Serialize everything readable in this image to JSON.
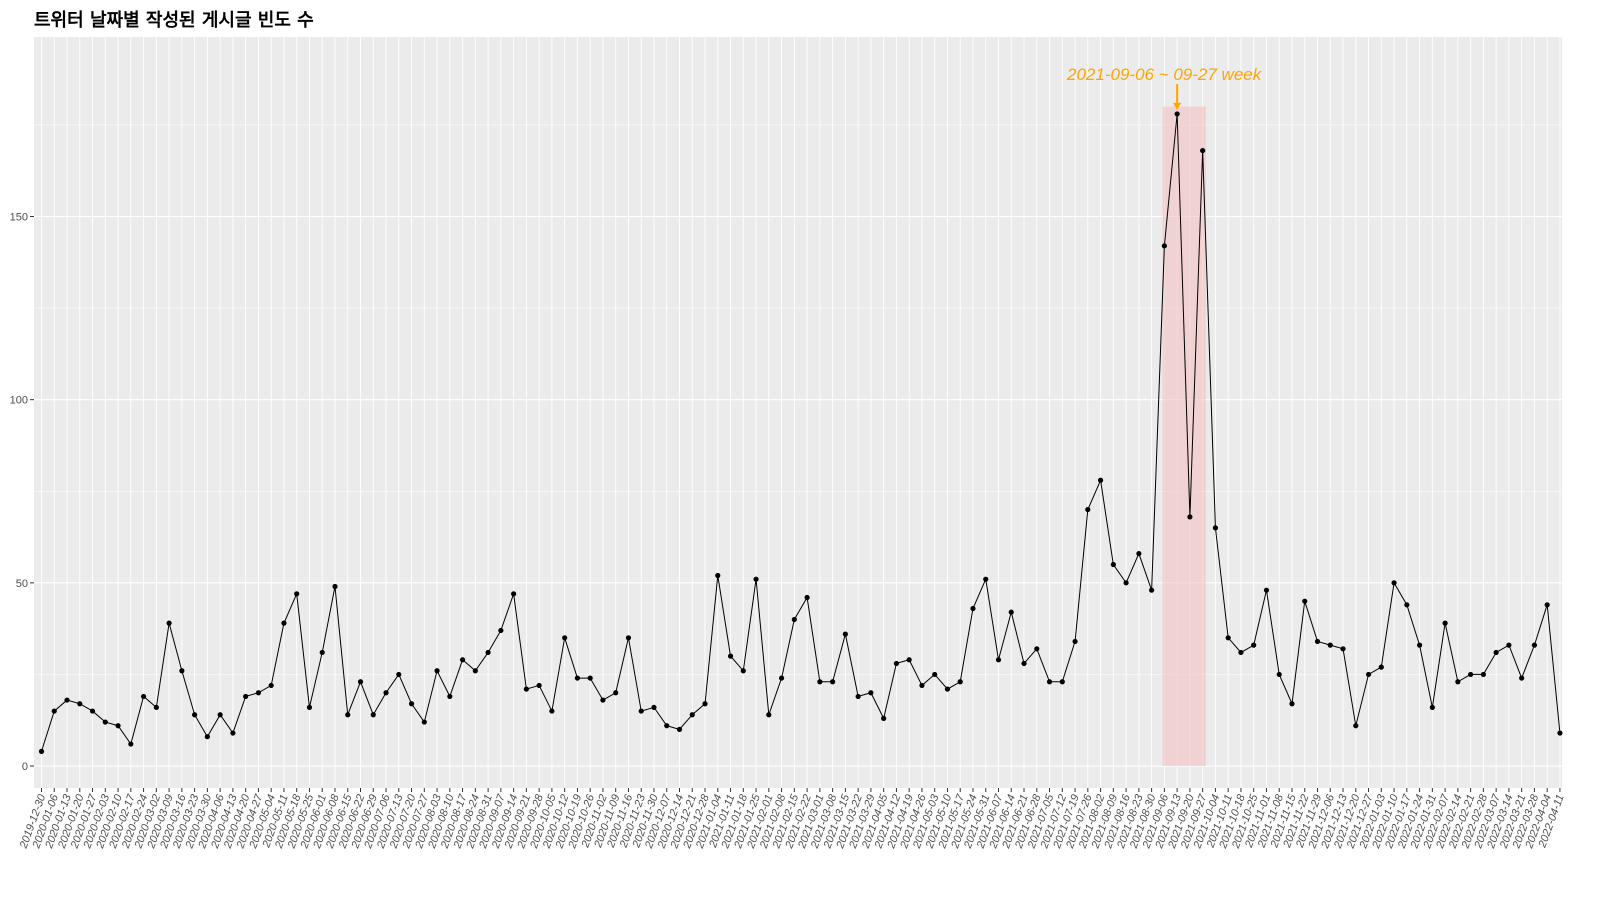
{
  "chart_data": {
    "type": "line",
    "title": "트위터 날짜별 작성된 게시글 빈도 수",
    "xlabel": "",
    "ylabel": "",
    "ylim": [
      -6,
      199
    ],
    "yticks": [
      0,
      50,
      100,
      150
    ],
    "grid": true,
    "x": [
      "2019-12-30",
      "2020-01-06",
      "2020-01-13",
      "2020-01-20",
      "2020-01-27",
      "2020-02-03",
      "2020-02-10",
      "2020-02-17",
      "2020-02-24",
      "2020-03-02",
      "2020-03-09",
      "2020-03-16",
      "2020-03-23",
      "2020-03-30",
      "2020-04-06",
      "2020-04-13",
      "2020-04-20",
      "2020-04-27",
      "2020-05-04",
      "2020-05-11",
      "2020-05-18",
      "2020-05-25",
      "2020-06-01",
      "2020-06-08",
      "2020-06-15",
      "2020-06-22",
      "2020-06-29",
      "2020-07-06",
      "2020-07-13",
      "2020-07-20",
      "2020-07-27",
      "2020-08-03",
      "2020-08-10",
      "2020-08-17",
      "2020-08-24",
      "2020-08-31",
      "2020-09-07",
      "2020-09-14",
      "2020-09-21",
      "2020-09-28",
      "2020-10-05",
      "2020-10-12",
      "2020-10-19",
      "2020-10-26",
      "2020-11-02",
      "2020-11-09",
      "2020-11-16",
      "2020-11-23",
      "2020-11-30",
      "2020-12-07",
      "2020-12-14",
      "2020-12-21",
      "2020-12-28",
      "2021-01-04",
      "2021-01-11",
      "2021-01-18",
      "2021-01-25",
      "2021-02-01",
      "2021-02-08",
      "2021-02-15",
      "2021-02-22",
      "2021-03-01",
      "2021-03-08",
      "2021-03-15",
      "2021-03-22",
      "2021-03-29",
      "2021-04-05",
      "2021-04-12",
      "2021-04-19",
      "2021-04-26",
      "2021-05-03",
      "2021-05-10",
      "2021-05-17",
      "2021-05-24",
      "2021-05-31",
      "2021-06-07",
      "2021-06-14",
      "2021-06-21",
      "2021-06-28",
      "2021-07-05",
      "2021-07-12",
      "2021-07-19",
      "2021-07-26",
      "2021-08-02",
      "2021-08-09",
      "2021-08-16",
      "2021-08-23",
      "2021-08-30",
      "2021-09-06",
      "2021-09-13",
      "2021-09-20",
      "2021-09-27",
      "2021-10-04",
      "2021-10-11",
      "2021-10-18",
      "2021-10-25",
      "2021-11-01",
      "2021-11-08",
      "2021-11-15",
      "2021-11-22",
      "2021-11-29",
      "2021-12-06",
      "2021-12-13",
      "2021-12-20",
      "2021-12-27",
      "2022-01-03",
      "2022-01-10",
      "2022-01-17",
      "2022-01-24",
      "2022-01-31",
      "2022-02-07",
      "2022-02-14",
      "2022-02-21",
      "2022-02-28",
      "2022-03-07",
      "2022-03-14",
      "2022-03-21",
      "2022-03-28",
      "2022-04-04",
      "2022-04-11"
    ],
    "x_tick_labels": [
      "2019-12-30",
      "2020-01-06",
      "2020-01-13",
      "2020-01-20",
      "2020-01-27",
      "2020-02-03",
      "2020-02-10",
      "2020-02-17",
      "2020-02-24",
      "2020-03-02",
      "2020-03-09",
      "2020-03-16",
      "2020-03-23",
      "2020-03-30",
      "2020-04-06",
      "2020-04-13",
      "2020-04-20",
      "2020-04-27",
      "2020-05-04",
      "2020-05-11",
      "2020-05-18",
      "2020-05-25",
      "2020-06-01",
      "2020-06-08",
      "2020-06-15",
      "2020-06-22",
      "2020-06-29",
      "2020-07-06",
      "2020-07-13",
      "2020-07-20",
      "2020-07-27",
      "2020-08-03",
      "2020-08-10",
      "2020-08-17",
      "2020-08-24",
      "2020-08-31",
      "2020-09-07",
      "2020-09-14",
      "2020-09-21",
      "2020-09-28",
      "2020-10-05",
      "2020-10-12",
      "2020-10-19",
      "2020-10-26",
      "2020-11-02",
      "2020-11-09",
      "2020-11-16",
      "2020-11-23",
      "2020-11-30",
      "2020-12-07",
      "2020-12-14",
      "2020-12-21",
      "2020-12-28",
      "2021-01-04",
      "2021-01-11",
      "2021-01-18",
      "2021-01-25",
      "2021-02-01",
      "2021-02-08",
      "2021-02-15",
      "2021-02-22",
      "2021-03-01",
      "2021-03-08",
      "2021-03-15",
      "2021-03-22",
      "2021-03-29",
      "2021-04-05",
      "2021-04-12",
      "2021-04-19",
      "2021-04-26",
      "2021-05-03",
      "2021-05-10",
      "2021-05-17",
      "2021-05-24",
      "2021-05-31",
      "2021-06-07",
      "2021-06-14",
      "2021-06-21",
      "2021-06-28",
      "2021-07-05",
      "2021-07-12",
      "2021-07-19",
      "2021-07-26",
      "2021-08-02",
      "2021-08-09",
      "2021-08-16",
      "2021-08-23",
      "2021-08-30",
      "2021-09-06",
      "2021-09-13",
      "2021-09-20",
      "2021-09-27",
      "2021-10-04",
      "2021-10-11",
      "2021-10-18",
      "2021-10-25",
      "2021-11-01",
      "2021-11-08",
      "2021-11-15",
      "2021-11-22",
      "2021-11-29",
      "2021-12-06",
      "2021-12-13",
      "2021-12-20",
      "2021-12-27",
      "2022-01-03",
      "2022-01-10",
      "2022-01-17",
      "2022-01-24",
      "2022-01-31",
      "2022-02-07",
      "2022-02-14",
      "2022-02-21",
      "2022-02-28",
      "2022-03-07",
      "2022-03-14",
      "2022-03-21",
      "2022-03-28",
      "2022-04-04",
      "2022-04-11"
    ],
    "series": [
      {
        "values": [
          4,
          15,
          18,
          17,
          15,
          12,
          11,
          6,
          19,
          16,
          39,
          26,
          14,
          8,
          14,
          9,
          19,
          20,
          22,
          39,
          47,
          16,
          31,
          49,
          14,
          23,
          14,
          20,
          25,
          17,
          12,
          26,
          19,
          29,
          26,
          31,
          37,
          47,
          21,
          22,
          15,
          35,
          24,
          24,
          18,
          20,
          35,
          15,
          16,
          11,
          10,
          14,
          17,
          52,
          30,
          26,
          51,
          14,
          24,
          40,
          46,
          23,
          23,
          36,
          19,
          20,
          13,
          28,
          29,
          22,
          25,
          21,
          23,
          43,
          51,
          29,
          42,
          28,
          32,
          23,
          23,
          34,
          70,
          78,
          55,
          50,
          58,
          48,
          142,
          178,
          68,
          168,
          65,
          35,
          31,
          33,
          48,
          25,
          17,
          45,
          34,
          33,
          32,
          11,
          25,
          27,
          50,
          44,
          33,
          16,
          39,
          23,
          25,
          25,
          31,
          33,
          24,
          33,
          44,
          9
        ],
        "color": "#000000"
      }
    ],
    "highlight": {
      "x_start": "2021-09-06",
      "x_end": "2021-09-27",
      "color": "#f4c2c2",
      "label": "2021-09-06 ~ 09-27 week",
      "label_color": "#ffa500",
      "arrow_to": {
        "x": "2021-09-13",
        "y": 178
      }
    },
    "colors": {
      "panel": "#ebebeb",
      "grid": "#ffffff",
      "line": "#000000",
      "highlight": "#f4c2c2",
      "annotation": "#ffa500"
    }
  }
}
